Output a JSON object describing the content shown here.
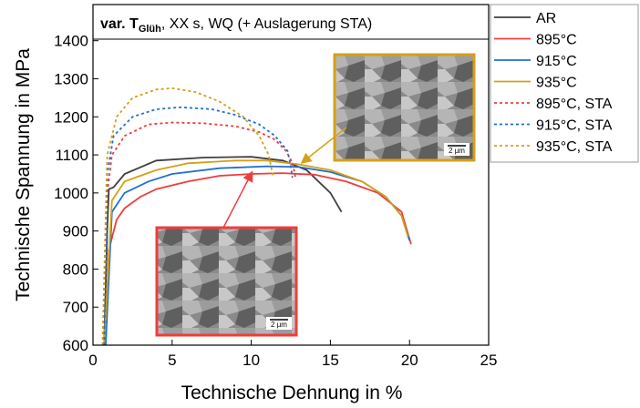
{
  "chart_data": {
    "type": "line",
    "title": {
      "main": "var. T",
      "subscript": "Glüh",
      "rest": ", XX s, WQ (+ Auslagerung STA)"
    },
    "x_label": "Technische Dehnung in %",
    "y_label": "Technische Spannung in MPa",
    "xlim": [
      0,
      25
    ],
    "xticks": [
      0,
      5,
      10,
      15,
      20,
      25
    ],
    "ylim": [
      600,
      1495
    ],
    "yticks": [
      600,
      700,
      800,
      900,
      1000,
      1100,
      1200,
      1300,
      1400
    ],
    "legend": "outside-right",
    "series": [
      {
        "name": "AR",
        "color": "#404040",
        "dash": "solid",
        "x": [
          0.7,
          0.9,
          1.0,
          1.3,
          2,
          4,
          7,
          10,
          12,
          13.5,
          15,
          15.7
        ],
        "values": [
          600,
          900,
          1010,
          1015,
          1050,
          1085,
          1093,
          1095,
          1085,
          1060,
          1000,
          950
        ]
      },
      {
        "name": "895°C",
        "color": "#f03c3c",
        "dash": "solid",
        "x": [
          0.8,
          1.0,
          1.5,
          2,
          3,
          4,
          6,
          8,
          10,
          12,
          14,
          16,
          18,
          19.5,
          20.1
        ],
        "values": [
          600,
          850,
          930,
          960,
          990,
          1010,
          1030,
          1045,
          1050,
          1052,
          1048,
          1030,
          1000,
          950,
          865
        ]
      },
      {
        "name": "915°C",
        "color": "#1f6fd0",
        "dash": "solid",
        "x": [
          0.8,
          1.2,
          2,
          3.5,
          5,
          8,
          11,
          13,
          15,
          17,
          18.5,
          19.5,
          20
        ],
        "values": [
          600,
          950,
          1000,
          1030,
          1050,
          1065,
          1070,
          1068,
          1055,
          1030,
          990,
          940,
          875
        ]
      },
      {
        "name": "935°C",
        "color": "#d4a017",
        "dash": "solid",
        "x": [
          0.7,
          1.2,
          2,
          4,
          6,
          9,
          11,
          13,
          15,
          17,
          18.5,
          19.5,
          19.9
        ],
        "values": [
          600,
          980,
          1030,
          1060,
          1078,
          1085,
          1085,
          1075,
          1060,
          1030,
          990,
          940,
          885
        ]
      },
      {
        "name": "895°C, STA",
        "color": "#f03c3c",
        "dash": "dashed",
        "x": [
          0.7,
          0.9,
          1.2,
          2,
          3.5,
          5,
          7,
          9,
          10.5,
          11.5,
          12.2,
          12.6,
          12.8
        ],
        "values": [
          600,
          1000,
          1100,
          1150,
          1180,
          1185,
          1183,
          1175,
          1160,
          1140,
          1110,
          1080,
          1040
        ]
      },
      {
        "name": "915°C, STA",
        "color": "#1f6fd0",
        "dash": "dashed",
        "x": [
          0.7,
          0.9,
          1.3,
          2.5,
          4,
          5.5,
          7.5,
          9,
          10.5,
          11.5,
          12.3,
          12.5,
          12.6
        ],
        "values": [
          600,
          1050,
          1150,
          1200,
          1220,
          1225,
          1220,
          1205,
          1180,
          1150,
          1110,
          1070,
          1040
        ]
      },
      {
        "name": "935°C, STA",
        "color": "#d4a017",
        "dash": "dashed",
        "x": [
          0.6,
          0.9,
          1.5,
          2.5,
          4,
          5,
          6.5,
          8,
          9.5,
          10.5,
          11.1,
          11.4
        ],
        "values": [
          600,
          1100,
          1200,
          1250,
          1272,
          1275,
          1265,
          1240,
          1200,
          1150,
          1100,
          1040
        ]
      }
    ],
    "annotations": [
      {
        "text": "2 µm"
      },
      {
        "text": "2 µm"
      }
    ]
  }
}
